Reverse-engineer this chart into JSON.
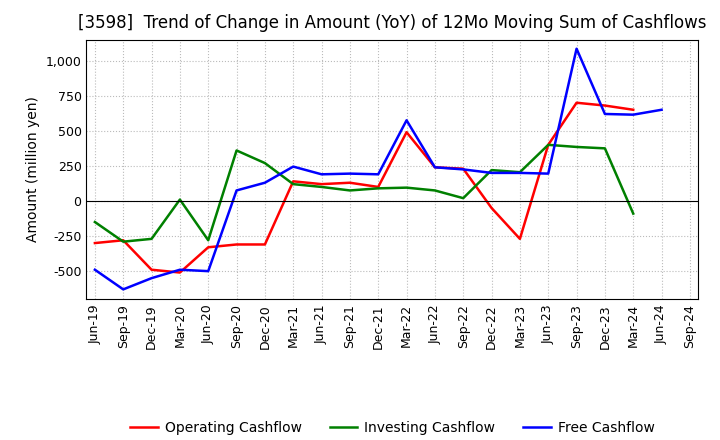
{
  "title": "[3598]  Trend of Change in Amount (YoY) of 12Mo Moving Sum of Cashflows",
  "ylabel": "Amount (million yen)",
  "x_labels": [
    "Jun-19",
    "Sep-19",
    "Dec-19",
    "Mar-20",
    "Jun-20",
    "Sep-20",
    "Dec-20",
    "Mar-21",
    "Jun-21",
    "Sep-21",
    "Dec-21",
    "Mar-22",
    "Jun-22",
    "Sep-22",
    "Dec-22",
    "Mar-23",
    "Jun-23",
    "Sep-23",
    "Dec-23",
    "Mar-24",
    "Jun-24",
    "Sep-24"
  ],
  "operating": [
    -300,
    -280,
    -490,
    -510,
    -330,
    -310,
    -310,
    140,
    120,
    130,
    100,
    490,
    240,
    230,
    -50,
    -270,
    400,
    700,
    680,
    650,
    null,
    null
  ],
  "investing": [
    -150,
    -290,
    -270,
    10,
    -280,
    360,
    270,
    120,
    100,
    75,
    90,
    95,
    75,
    20,
    220,
    205,
    400,
    385,
    375,
    -90,
    null,
    null
  ],
  "free": [
    -490,
    -630,
    -550,
    -490,
    -500,
    75,
    130,
    245,
    190,
    195,
    190,
    575,
    240,
    225,
    200,
    200,
    195,
    1085,
    620,
    615,
    650,
    null
  ],
  "ylim": [
    -700,
    1150
  ],
  "yticks": [
    -500,
    -250,
    0,
    250,
    500,
    750,
    1000
  ],
  "operating_color": "#ff0000",
  "investing_color": "#008000",
  "free_color": "#0000ff",
  "bg_color": "#ffffff",
  "plot_bg_color": "#ffffff",
  "grid_color": "#bbbbbb",
  "title_fontsize": 12,
  "legend_fontsize": 10,
  "tick_fontsize": 9,
  "ylabel_fontsize": 10
}
